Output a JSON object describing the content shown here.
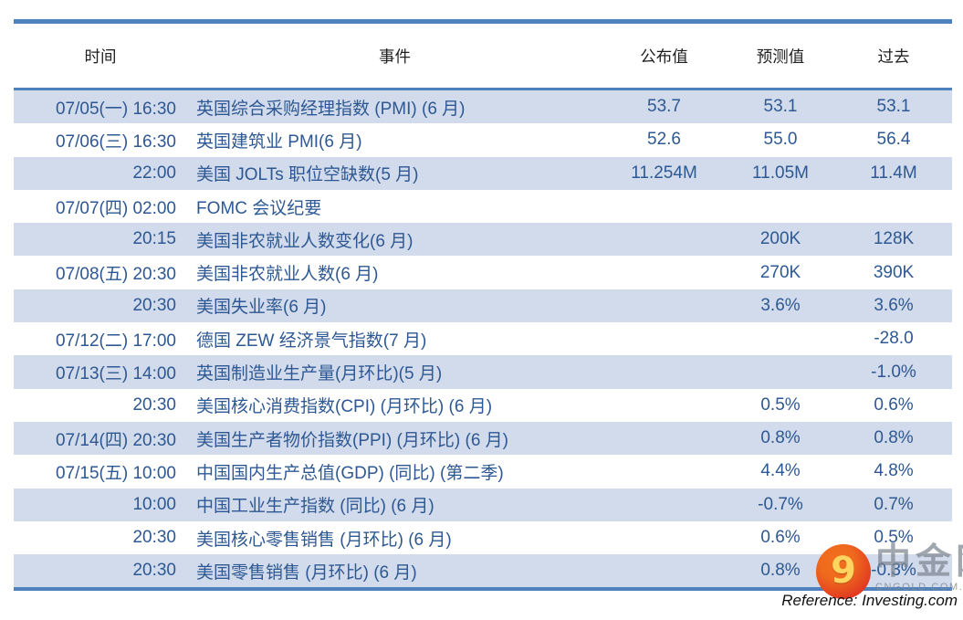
{
  "chart_data": {
    "type": "table",
    "columns": [
      {
        "key": "time",
        "label": "时间"
      },
      {
        "key": "event",
        "label": "事件"
      },
      {
        "key": "actual",
        "label": "公布值"
      },
      {
        "key": "forecast",
        "label": "预测值"
      },
      {
        "key": "previous",
        "label": "过去"
      }
    ],
    "rows": [
      {
        "time": "07/05(一) 16:30",
        "event": "英国综合采购经理指数 (PMI) (6 月)",
        "actual": "53.7",
        "forecast": "53.1",
        "previous": "53.1"
      },
      {
        "time": "07/06(三) 16:30",
        "event": "英国建筑业 PMI(6 月)",
        "actual": "52.6",
        "forecast": "55.0",
        "previous": "56.4"
      },
      {
        "time": "22:00",
        "event": "美国 JOLTs 职位空缺数(5 月)",
        "actual": "11.254M",
        "forecast": "11.05M",
        "previous": "11.4M"
      },
      {
        "time": "07/07(四) 02:00",
        "event": "FOMC 会议纪要",
        "actual": "",
        "forecast": "",
        "previous": ""
      },
      {
        "time": "20:15",
        "event": "美国非农就业人数变化(6 月)",
        "actual": "",
        "forecast": "200K",
        "previous": "128K"
      },
      {
        "time": "07/08(五) 20:30",
        "event": "美国非农就业人数(6 月)",
        "actual": "",
        "forecast": "270K",
        "previous": "390K"
      },
      {
        "time": "20:30",
        "event": "美国失业率(6 月)",
        "actual": "",
        "forecast": "3.6%",
        "previous": "3.6%"
      },
      {
        "time": "07/12(二) 17:00",
        "event": "德国 ZEW 经济景气指数(7 月)",
        "actual": "",
        "forecast": "",
        "previous": "-28.0"
      },
      {
        "time": "07/13(三) 14:00",
        "event": "英国制造业生产量(月环比)(5 月)",
        "actual": "",
        "forecast": "",
        "previous": "-1.0%"
      },
      {
        "time": "20:30",
        "event": "美国核心消费指数(CPI) (月环比) (6 月)",
        "actual": "",
        "forecast": "0.5%",
        "previous": "0.6%"
      },
      {
        "time": "07/14(四) 20:30",
        "event": "美国生产者物价指数(PPI) (月环比) (6 月)",
        "actual": "",
        "forecast": "0.8%",
        "previous": "0.8%"
      },
      {
        "time": "07/15(五) 10:00",
        "event": "中国国内生产总值(GDP) (同比) (第二季)",
        "actual": "",
        "forecast": "4.4%",
        "previous": "4.8%"
      },
      {
        "time": "10:00",
        "event": "中国工业生产指数 (同比) (6 月)",
        "actual": "",
        "forecast": "-0.7%",
        "previous": "0.7%"
      },
      {
        "time": "20:30",
        "event": "美国核心零售销售 (月环比) (6 月)",
        "actual": "",
        "forecast": "0.6%",
        "previous": "0.5%"
      },
      {
        "time": "20:30",
        "event": "美国零售销售 (月环比) (6 月)",
        "actual": "",
        "forecast": "0.8%",
        "previous": "-0.3%"
      }
    ],
    "title": "",
    "layout": {
      "banding": "first-row-shaded",
      "grid": "off"
    }
  },
  "footer": {
    "reference": "Reference: Investing.com"
  },
  "watermark": {
    "name": "中金网",
    "site": "CNGOLD.COM.CN",
    "logo_glyph": "9"
  },
  "colors": {
    "accent_border": "#4F81BD",
    "row_shaded_bg": "#D1DBEB",
    "body_text": "#2E5893",
    "header_text": "#1f1f1f",
    "logo_red": "#E03321",
    "logo_gold": "#FFD560"
  }
}
